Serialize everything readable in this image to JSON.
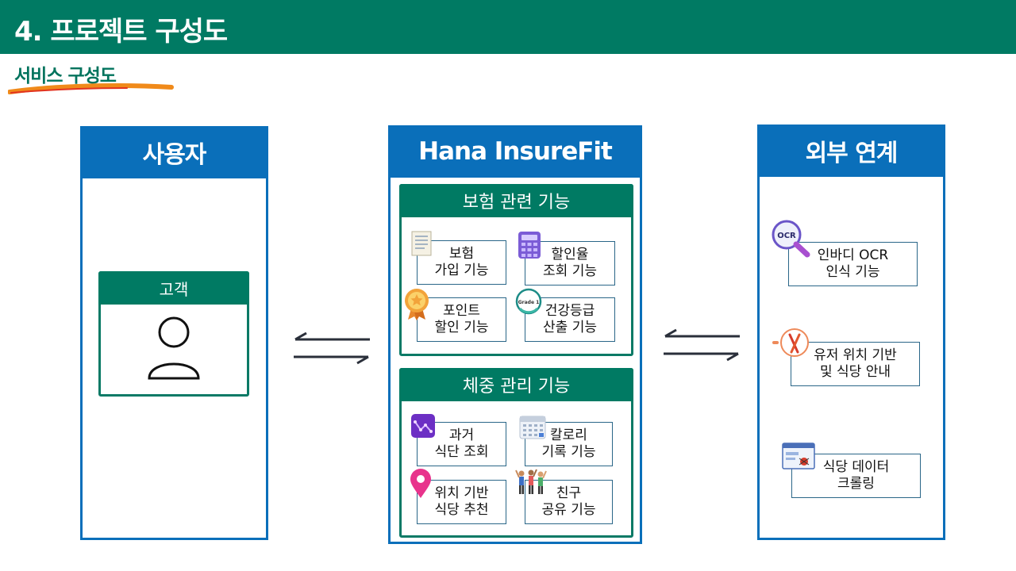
{
  "header": {
    "title": "4. 프로젝트 구성도"
  },
  "subtitle": "서비스 구성도",
  "user_panel": {
    "title": "사용자",
    "customer_label": "고객"
  },
  "main_panel": {
    "title": "Hana InsureFit",
    "insurance": {
      "title": "보험 관련 기능",
      "items": [
        {
          "line1": "보험",
          "line2": "가입 기능"
        },
        {
          "line1": "할인율",
          "line2": "조회 기능"
        },
        {
          "line1": "포인트",
          "line2": "할인 기능"
        },
        {
          "line1": "건강등급",
          "line2": "산출 기능"
        }
      ],
      "grade_badge": "Grade 1"
    },
    "weight": {
      "title": "체중 관리 기능",
      "items": [
        {
          "line1": "과거",
          "line2": "식단 조회"
        },
        {
          "line1": "칼로리",
          "line2": "기록 기능"
        },
        {
          "line1": "위치 기반",
          "line2": "식당 추천"
        },
        {
          "line1": "친구",
          "line2": "공유 기능"
        }
      ]
    }
  },
  "external_panel": {
    "title": "외부 연계",
    "items": [
      {
        "line1": "인바디 OCR",
        "line2": "인식 기능"
      },
      {
        "line1": "유저 위치 기반",
        "line2": "및 식당 안내"
      },
      {
        "line1": "식당 데이터",
        "line2": "크롤링"
      }
    ],
    "ocr_badge": "OCR"
  },
  "colors": {
    "primary_green": "#007a63",
    "panel_blue": "#0a6fba",
    "brush_orange": "#f0801a"
  }
}
